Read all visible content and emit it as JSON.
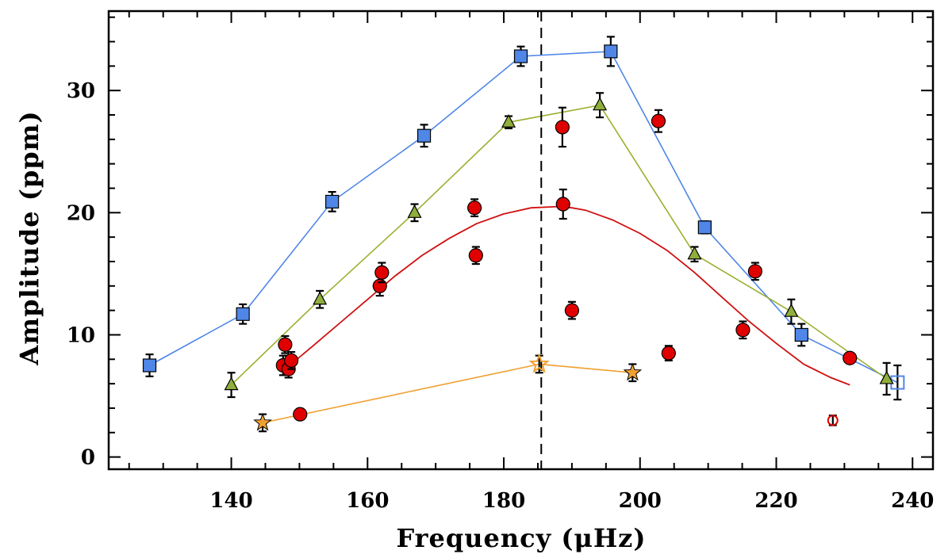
{
  "chart_data": {
    "type": "scatter",
    "title": "",
    "xlabel": "Frequency (μHz)",
    "ylabel": "Amplitude (ppm)",
    "xlim": [
      122,
      243
    ],
    "ylim": [
      -1,
      36.5
    ],
    "x_ticks_major": [
      140,
      160,
      180,
      200,
      220,
      240
    ],
    "y_ticks_major": [
      0,
      10,
      20,
      30
    ],
    "x_minor_step": 5,
    "y_minor_step": 2,
    "vline_x": 185.5,
    "grid": false,
    "legend": "none",
    "colors": {
      "blue": "#4f86e8",
      "green": "#8fae3c",
      "red": "#e00000",
      "orange": "#f0a030",
      "line_blue": "#4f86e8",
      "line_green": "#9ab030",
      "line_red": "#d01010",
      "line_orange": "#f0a030"
    },
    "series": [
      {
        "marker": "square",
        "color": "#4f86e8",
        "connected": true,
        "points": [
          {
            "x": 128,
            "y": 7.5,
            "err": 0.9
          },
          {
            "x": 141.7,
            "y": 11.7,
            "err": 0.8
          },
          {
            "x": 154.8,
            "y": 20.9,
            "err": 0.8
          },
          {
            "x": 168.3,
            "y": 26.3,
            "err": 0.9
          },
          {
            "x": 182.5,
            "y": 32.8,
            "err": 0.8
          },
          {
            "x": 195.7,
            "y": 33.2,
            "err": 1.2
          },
          {
            "x": 209.5,
            "y": 18.8,
            "err": 0.5
          },
          {
            "x": 223.7,
            "y": 10.0,
            "err": 0.9
          },
          {
            "x": 237.8,
            "y": 6.1,
            "err": 1.4,
            "hollow": true
          }
        ]
      },
      {
        "marker": "triangle",
        "color": "#8fae3c",
        "connected": true,
        "points": [
          {
            "x": 140,
            "y": 5.9,
            "err": 1.0
          },
          {
            "x": 153,
            "y": 12.9,
            "err": 0.7
          },
          {
            "x": 166.9,
            "y": 20.0,
            "err": 0.7
          },
          {
            "x": 180.7,
            "y": 27.4,
            "err": 0.5
          },
          {
            "x": 194.1,
            "y": 28.8,
            "err": 1.0
          },
          {
            "x": 208,
            "y": 16.6,
            "err": 0.6
          },
          {
            "x": 222.2,
            "y": 11.9,
            "err": 1.0
          },
          {
            "x": 236.2,
            "y": 6.4,
            "err": 1.3
          }
        ]
      },
      {
        "marker": "circle",
        "color": "#e00000",
        "connected": false,
        "points": [
          {
            "x": 147.6,
            "y": 7.5,
            "err": 0.8
          },
          {
            "x": 147.9,
            "y": 9.2,
            "err": 0.7
          },
          {
            "x": 148.4,
            "y": 7.2,
            "err": 0.7
          },
          {
            "x": 148.8,
            "y": 7.9,
            "err": 0.7
          },
          {
            "x": 150.1,
            "y": 3.5,
            "err": 0.4
          },
          {
            "x": 161.8,
            "y": 14.0,
            "err": 0.8
          },
          {
            "x": 162.1,
            "y": 15.1,
            "err": 0.8
          },
          {
            "x": 175.7,
            "y": 20.4,
            "err": 0.7
          },
          {
            "x": 175.9,
            "y": 16.5,
            "err": 0.7
          },
          {
            "x": 188.6,
            "y": 27.0,
            "err": 1.6
          },
          {
            "x": 188.7,
            "y": 20.7,
            "err": 1.2
          },
          {
            "x": 190,
            "y": 12.0,
            "err": 0.7
          },
          {
            "x": 202.7,
            "y": 27.5,
            "err": 0.9
          },
          {
            "x": 204.2,
            "y": 8.5,
            "err": 0.6
          },
          {
            "x": 215.1,
            "y": 10.4,
            "err": 0.7
          },
          {
            "x": 216.9,
            "y": 15.2,
            "err": 0.7
          },
          {
            "x": 228.3,
            "y": 3.0,
            "err": 0.4,
            "hollow": true
          },
          {
            "x": 230.8,
            "y": 8.1,
            "err": 0.4
          }
        ]
      },
      {
        "marker": "star",
        "color": "#f0a030",
        "connected": true,
        "points": [
          {
            "x": 144.6,
            "y": 2.8,
            "err": 0.7
          },
          {
            "x": 185.2,
            "y": 7.6,
            "err": 0.7,
            "hollow": true
          },
          {
            "x": 198.9,
            "y": 6.9,
            "err": 0.7
          }
        ]
      }
    ],
    "fit_curve": {
      "color": "#d01010",
      "x": [
        148.8,
        152,
        156,
        160,
        164,
        168,
        172,
        176,
        180,
        184,
        188,
        190,
        192,
        196,
        200,
        204,
        208,
        212,
        216,
        220,
        224,
        228,
        230.8
      ],
      "y": [
        7.6,
        9.1,
        11.0,
        12.9,
        14.8,
        16.5,
        17.9,
        19.1,
        19.9,
        20.4,
        20.5,
        20.4,
        20.2,
        19.4,
        18.3,
        16.9,
        15.1,
        13.1,
        11.1,
        9.3,
        7.6,
        6.5,
        5.9
      ]
    }
  }
}
